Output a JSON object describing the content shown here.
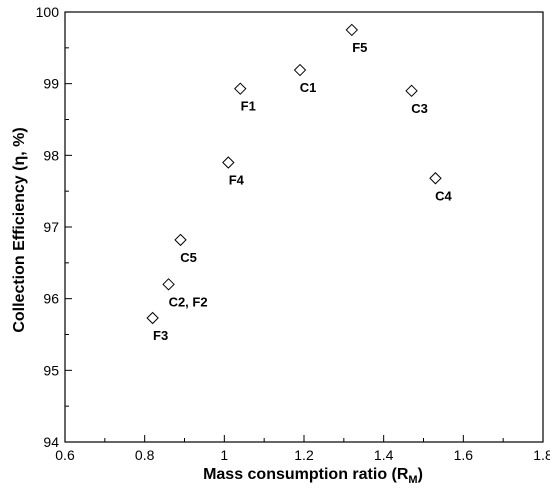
{
  "chart_data": {
    "type": "scatter",
    "xlabel": "Mass consumption ratio (R",
    "xlabel_sub": "M",
    "xlabel_end": ")",
    "ylabel": "Collection Efficiency (η, %)",
    "xlim": [
      0.6,
      1.8
    ],
    "ylim": [
      94,
      100
    ],
    "xticks": [
      "0.6",
      "0.8",
      "1",
      "1.2",
      "1.4",
      "1.6",
      "1.8"
    ],
    "yticks": [
      "94",
      "95",
      "96",
      "97",
      "98",
      "99",
      "100"
    ],
    "marker": "diamond",
    "grid": false,
    "points": [
      {
        "label": "F3",
        "x": 0.82,
        "y": 95.73,
        "label_pos": "below"
      },
      {
        "label": "C2, F2",
        "x": 0.86,
        "y": 96.2,
        "label_pos": "below-right"
      },
      {
        "label": "C5",
        "x": 0.89,
        "y": 96.82,
        "label_pos": "below"
      },
      {
        "label": "F4",
        "x": 1.01,
        "y": 97.9,
        "label_pos": "below"
      },
      {
        "label": "F1",
        "x": 1.04,
        "y": 98.93,
        "label_pos": "below"
      },
      {
        "label": "C1",
        "x": 1.19,
        "y": 99.19,
        "label_pos": "below"
      },
      {
        "label": "F5",
        "x": 1.32,
        "y": 99.75,
        "label_pos": "below"
      },
      {
        "label": "C3",
        "x": 1.47,
        "y": 98.9,
        "label_pos": "below"
      },
      {
        "label": "C4",
        "x": 1.53,
        "y": 97.68,
        "label_pos": "below"
      }
    ]
  }
}
